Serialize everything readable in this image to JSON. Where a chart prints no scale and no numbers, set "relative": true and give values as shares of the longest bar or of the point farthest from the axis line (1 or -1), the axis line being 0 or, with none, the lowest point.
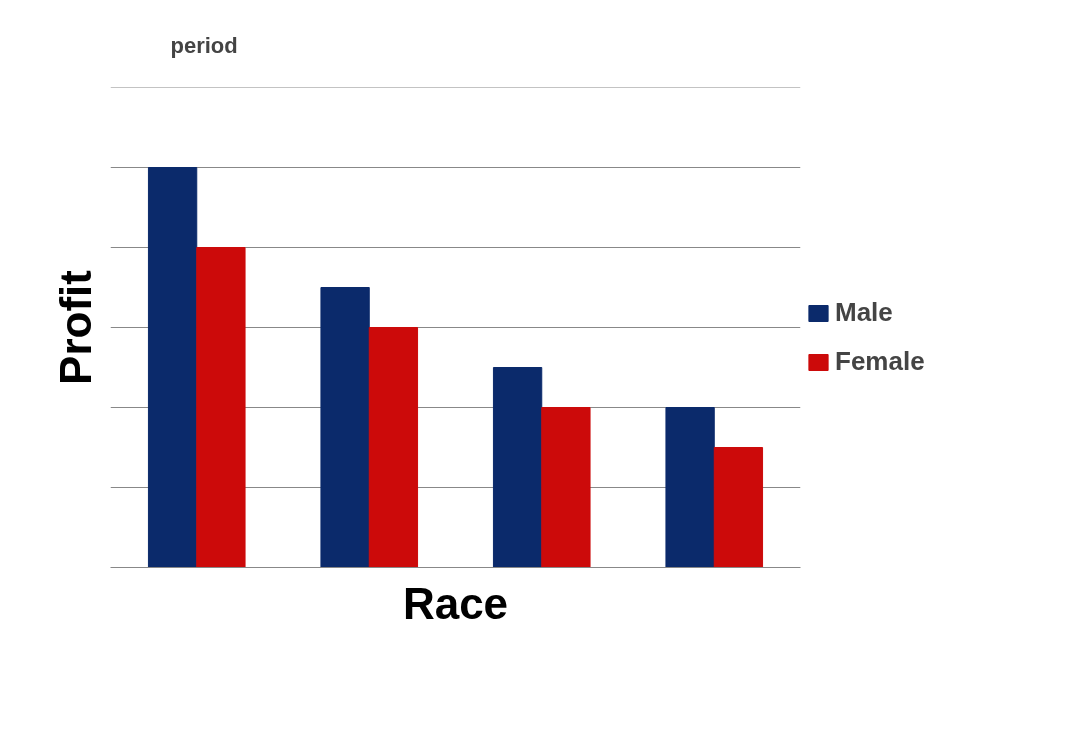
{
  "chart_data": {
    "type": "bar",
    "relative": true,
    "xlabel": "Race",
    "ylabel": "Profit",
    "annotations": [
      "period"
    ],
    "categories": [
      null,
      null,
      null,
      null
    ],
    "series": [
      {
        "name": "Male",
        "color": "#0b2a6b",
        "values": [
          1,
          0.7,
          0.5,
          0.4
        ]
      },
      {
        "name": "Female",
        "color": "#cc0a0a",
        "values": [
          0.8,
          0.6,
          0.4,
          0.3
        ]
      }
    ],
    "grid": "y",
    "legend": "right"
  }
}
